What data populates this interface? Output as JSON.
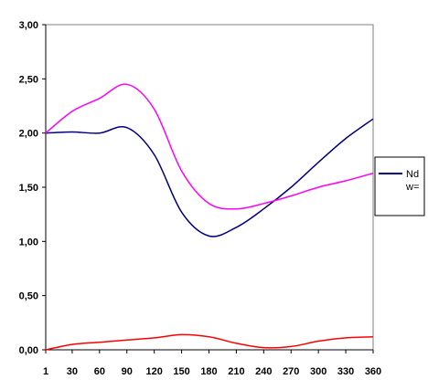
{
  "chart_data": {
    "type": "line",
    "title": "",
    "xlabel": "",
    "ylabel": "",
    "x": [
      1,
      30,
      60,
      90,
      120,
      150,
      180,
      210,
      240,
      270,
      300,
      330,
      360
    ],
    "x_tick_labels": [
      "1",
      "30",
      "60",
      "90",
      "120",
      "150",
      "180",
      "210",
      "240",
      "270",
      "300",
      "330",
      "360"
    ],
    "xlim": [
      1,
      360
    ],
    "ylim": [
      0,
      3
    ],
    "y_ticks": [
      0,
      0.5,
      1,
      1.5,
      2,
      2.5,
      3
    ],
    "y_tick_labels": [
      "0,00",
      "0,50",
      "1,00",
      "1,50",
      "2,00",
      "2,50",
      "3,00"
    ],
    "grid": false,
    "legend_position": "right",
    "series": [
      {
        "name": "Nd",
        "color": "#000080",
        "values": [
          2.0,
          2.01,
          2.0,
          2.05,
          1.8,
          1.27,
          1.05,
          1.13,
          1.3,
          1.5,
          1.73,
          1.95,
          2.13
        ]
      },
      {
        "name": "w=",
        "color": "#ff00ff",
        "values": [
          2.0,
          2.2,
          2.32,
          2.45,
          2.22,
          1.65,
          1.35,
          1.3,
          1.35,
          1.42,
          1.5,
          1.56,
          1.63
        ]
      },
      {
        "name": "",
        "color": "#ff0000",
        "values": [
          0.0,
          0.05,
          0.07,
          0.09,
          0.11,
          0.14,
          0.12,
          0.06,
          0.02,
          0.03,
          0.08,
          0.11,
          0.12
        ]
      }
    ],
    "legend": [
      {
        "label": "Nd",
        "color": "#000080"
      },
      {
        "label": "w=",
        "color": ""
      }
    ]
  }
}
